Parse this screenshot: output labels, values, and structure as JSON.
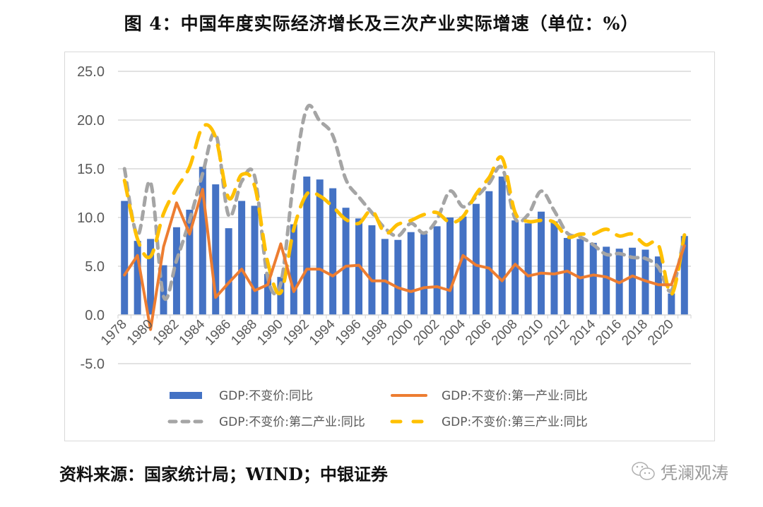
{
  "title": "图 4：中国年度实际经济增长及三次产业实际增速（单位：%）",
  "source": "资料来源：国家统计局；WIND；中银证券",
  "watermark": {
    "icon": "wechat-icon",
    "text": "凭澜观涛"
  },
  "colors": {
    "gdp": "#4472C4",
    "primary": "#ED7D31",
    "secondary": "#A5A5A5",
    "tertiary": "#FFC000",
    "grid": "#D9D9D9"
  },
  "chart_data": {
    "type": "bar",
    "title": "图 4：中国年度实际经济增长及三次产业实际增速（单位：%）",
    "xlabel": "",
    "ylabel": "",
    "ylim": [
      -5,
      25
    ],
    "yticks": [
      "-5.0",
      "0.0",
      "5.0",
      "10.0",
      "15.0",
      "20.0",
      "25.0"
    ],
    "grid": true,
    "legend_position": "bottom",
    "categories": [
      "1978",
      "1979",
      "1980",
      "1981",
      "1982",
      "1983",
      "1984",
      "1985",
      "1986",
      "1987",
      "1988",
      "1989",
      "1990",
      "1991",
      "1992",
      "1993",
      "1994",
      "1995",
      "1996",
      "1997",
      "1998",
      "1999",
      "2000",
      "2001",
      "2002",
      "2003",
      "2004",
      "2005",
      "2006",
      "2007",
      "2008",
      "2009",
      "2010",
      "2011",
      "2012",
      "2013",
      "2014",
      "2015",
      "2016",
      "2017",
      "2018",
      "2019",
      "2020",
      "2021"
    ],
    "xtick_labels": [
      "1978",
      "1980",
      "1982",
      "1984",
      "1986",
      "1988",
      "1990",
      "1992",
      "1994",
      "1996",
      "1998",
      "2000",
      "2002",
      "2004",
      "2006",
      "2008",
      "2010",
      "2012",
      "2014",
      "2016",
      "2018",
      "2020"
    ],
    "series": [
      {
        "name": "GDP:不变价:同比",
        "type": "bar",
        "values": [
          11.7,
          7.6,
          7.8,
          5.1,
          9.0,
          10.8,
          15.2,
          13.4,
          8.9,
          11.7,
          11.2,
          4.2,
          3.9,
          9.3,
          14.2,
          13.9,
          13.0,
          11.0,
          9.9,
          9.2,
          7.8,
          7.7,
          8.5,
          8.3,
          9.1,
          10.0,
          10.1,
          11.4,
          12.7,
          14.2,
          9.7,
          9.4,
          10.6,
          9.6,
          7.9,
          7.8,
          7.4,
          7.0,
          6.8,
          6.9,
          6.7,
          6.0,
          2.2,
          8.1
        ]
      },
      {
        "name": "GDP:不变价:第一产业:同比",
        "type": "line",
        "style": "solid",
        "values": [
          4.1,
          6.1,
          -1.5,
          7.0,
          11.5,
          8.3,
          12.9,
          1.8,
          3.3,
          4.7,
          2.5,
          3.1,
          7.3,
          2.4,
          4.7,
          4.7,
          4.0,
          5.0,
          5.1,
          3.5,
          3.5,
          2.8,
          2.4,
          2.8,
          2.9,
          2.5,
          6.1,
          5.1,
          4.8,
          3.5,
          5.2,
          4.0,
          4.3,
          4.2,
          4.5,
          3.8,
          4.1,
          3.9,
          3.3,
          4.0,
          3.5,
          3.1,
          3.1,
          7.1
        ]
      },
      {
        "name": "GDP:不变价:第二产业:同比",
        "type": "line",
        "style": "dashed",
        "values": [
          15.0,
          8.2,
          13.6,
          1.9,
          5.6,
          9.7,
          14.5,
          18.6,
          10.2,
          13.7,
          14.2,
          3.8,
          3.2,
          13.9,
          21.2,
          19.9,
          18.4,
          13.9,
          12.1,
          10.5,
          8.9,
          8.1,
          9.4,
          8.4,
          9.8,
          12.7,
          11.1,
          12.1,
          13.5,
          15.1,
          9.9,
          10.3,
          12.7,
          10.7,
          8.4,
          8.0,
          7.2,
          6.2,
          6.3,
          5.9,
          5.8,
          4.9,
          2.5,
          8.2
        ]
      },
      {
        "name": "GDP:不变价:第三产业:同比",
        "type": "line",
        "style": "long-dashed",
        "values": [
          13.8,
          7.8,
          6.0,
          10.4,
          13.0,
          15.2,
          19.3,
          18.2,
          12.0,
          14.4,
          13.2,
          5.4,
          2.3,
          8.8,
          12.4,
          12.2,
          11.1,
          9.8,
          9.4,
          10.7,
          8.4,
          9.3,
          9.7,
          10.3,
          10.5,
          9.5,
          10.1,
          12.4,
          14.1,
          16.1,
          10.5,
          9.6,
          9.7,
          9.5,
          8.0,
          8.3,
          8.3,
          8.8,
          8.1,
          8.3,
          7.2,
          7.2,
          2.1,
          8.2
        ]
      }
    ]
  }
}
